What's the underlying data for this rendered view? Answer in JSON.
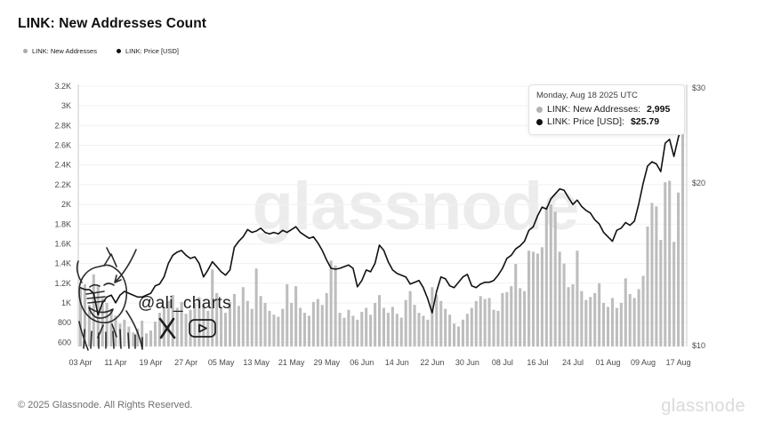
{
  "header": {
    "title": "LINK: New Addresses Count"
  },
  "legend": [
    {
      "label": "LINK: New Addresses",
      "color": "#ababab"
    },
    {
      "label": "LINK: Price [USD]",
      "color": "#111111"
    }
  ],
  "tooltip": {
    "date": "Monday, Aug 18 2025 UTC",
    "rows": [
      {
        "label": "LINK: New Addresses:",
        "value": "2,995",
        "dot": "#b3b3b3"
      },
      {
        "label": "LINK: Price [USD]:",
        "value": "$25.79",
        "dot": "#111111"
      }
    ]
  },
  "watermark": "glassnode",
  "annotation": {
    "handle": "@ali_charts"
  },
  "footer": {
    "copyright": "© 2025 Glassnode. All Rights Reserved.",
    "logo": "glassnode"
  },
  "chart_data": {
    "type": "bar+line",
    "title": "LINK: New Addresses Count",
    "start_date": "2025-04-03",
    "end_date": "2025-08-18",
    "x_tick_every": 8,
    "x_tick_labels": [
      "03 Apr",
      "11 Apr",
      "19 Apr",
      "27 Apr",
      "05 May",
      "13 May",
      "21 May",
      "29 May",
      "06 Jun",
      "14 Jun",
      "22 Jun",
      "30 Jun",
      "08 Jul",
      "16 Jul",
      "24 Jul",
      "01 Aug",
      "09 Aug",
      "17 Aug"
    ],
    "left_axis": {
      "label": "LINK: New Addresses",
      "scale": "linear",
      "range": [
        558,
        3200
      ],
      "tick_values": [
        600,
        800,
        1000,
        1200,
        1400,
        1600,
        1800,
        2000,
        2200,
        2400,
        2600,
        2800,
        3000,
        3200
      ],
      "tick_labels": [
        "600",
        "800",
        "1K",
        "1.2K",
        "1.4K",
        "1.6K",
        "1.8K",
        "2K",
        "2.2K",
        "2.4K",
        "2.6K",
        "2.8K",
        "3K",
        "3.2K"
      ]
    },
    "right_axis": {
      "label": "LINK: Price [USD]",
      "scale": "log",
      "range": [
        9.96,
        30.23
      ],
      "tick_values": [
        10,
        20,
        30
      ],
      "tick_labels": [
        "$10",
        "$20",
        "$30"
      ]
    },
    "series": [
      {
        "name": "LINK: New Addresses",
        "type": "bar",
        "color": "#bdbdbd",
        "values": [
          1150,
          1190,
          980,
          1290,
          1180,
          1050,
          1000,
          940,
          870,
          790,
          830,
          760,
          700,
          740,
          820,
          690,
          720,
          810,
          900,
          960,
          1020,
          1080,
          950,
          1010,
          890,
          930,
          1000,
          1060,
          980,
          920,
          1340,
          1100,
          960,
          900,
          1010,
          1090,
          970,
          1160,
          1020,
          940,
          1350,
          1070,
          1000,
          920,
          880,
          860,
          940,
          1190,
          1000,
          1170,
          950,
          900,
          870,
          1010,
          1040,
          980,
          1100,
          1430,
          1380,
          900,
          850,
          930,
          870,
          830,
          910,
          950,
          880,
          1000,
          1080,
          950,
          900,
          960,
          890,
          850,
          1030,
          1120,
          980,
          900,
          870,
          830,
          1160,
          1080,
          1020,
          940,
          880,
          790,
          760,
          830,
          890,
          950,
          1020,
          1070,
          1040,
          1050,
          930,
          920,
          1100,
          1110,
          1170,
          1395,
          1150,
          1120,
          1530,
          1520,
          1500,
          1565,
          1970,
          2000,
          1925,
          1520,
          1400,
          1160,
          1190,
          1530,
          1120,
          1030,
          1060,
          1100,
          1200,
          1000,
          960,
          1050,
          950,
          1000,
          1250,
          1090,
          1050,
          1140,
          1275,
          1775,
          2015,
          1980,
          1640,
          2225,
          2240,
          1620,
          2120,
          2995
        ]
      },
      {
        "name": "LINK: Price [USD]",
        "type": "line",
        "color": "#111111",
        "values": [
          12.8,
          12.7,
          12.7,
          12.5,
          11.4,
          12.0,
          12.3,
          12.4,
          12.0,
          12.4,
          12.6,
          12.5,
          12.4,
          12.3,
          12.3,
          12.4,
          12.5,
          12.9,
          13.0,
          13.4,
          14.2,
          14.7,
          14.9,
          15.0,
          14.7,
          14.5,
          14.6,
          14.2,
          13.4,
          13.8,
          14.3,
          14.0,
          13.7,
          13.5,
          13.8,
          15.2,
          15.6,
          15.9,
          16.4,
          16.2,
          16.3,
          16.5,
          16.2,
          16.1,
          16.2,
          16.1,
          16.35,
          16.2,
          16.4,
          16.6,
          16.2,
          16.0,
          15.8,
          15.9,
          15.5,
          15.0,
          14.4,
          13.9,
          13.85,
          13.9,
          14.0,
          14.1,
          13.9,
          12.85,
          13.2,
          13.8,
          13.7,
          14.2,
          15.35,
          15.0,
          14.3,
          13.8,
          13.6,
          13.5,
          13.4,
          13.0,
          13.1,
          13.2,
          12.8,
          12.2,
          11.5,
          12.6,
          13.4,
          13.3,
          12.9,
          12.8,
          13.1,
          13.4,
          13.55,
          12.9,
          12.8,
          13.0,
          13.1,
          13.1,
          13.2,
          13.5,
          13.9,
          14.5,
          14.7,
          15.1,
          15.3,
          15.6,
          16.35,
          16.6,
          17.4,
          18.05,
          17.9,
          18.7,
          19.1,
          19.5,
          19.4,
          18.8,
          18.25,
          18.6,
          18.1,
          17.8,
          17.6,
          17.1,
          16.8,
          16.2,
          15.9,
          15.6,
          16.35,
          16.5,
          16.9,
          16.7,
          17.0,
          18.3,
          20.0,
          21.5,
          21.9,
          21.7,
          21.0,
          23.7,
          24.1,
          22.4,
          24.3,
          25.79
        ]
      }
    ]
  }
}
